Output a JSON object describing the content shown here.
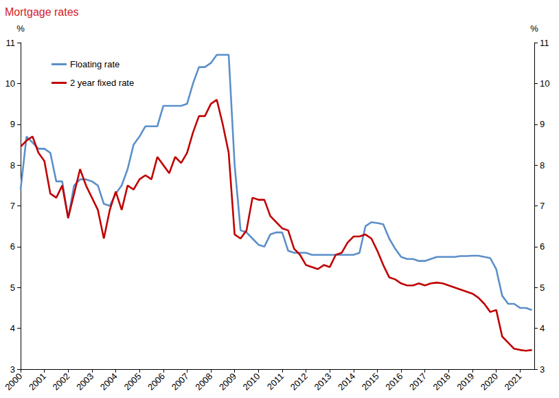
{
  "chart_data": {
    "type": "line",
    "title": "Mortgage rates",
    "y_label": "%",
    "y2_label": "%",
    "x": [
      2000,
      2000.25,
      2000.5,
      2000.75,
      2001,
      2001.25,
      2001.5,
      2001.75,
      2002,
      2002.25,
      2002.5,
      2002.75,
      2003,
      2003.25,
      2003.5,
      2003.75,
      2004,
      2004.25,
      2004.5,
      2004.75,
      2005,
      2005.25,
      2005.5,
      2005.75,
      2006,
      2006.25,
      2006.5,
      2006.75,
      2007,
      2007.25,
      2007.5,
      2007.75,
      2008,
      2008.25,
      2008.5,
      2008.75,
      2009,
      2009.25,
      2009.5,
      2009.75,
      2010,
      2010.25,
      2010.5,
      2010.75,
      2011,
      2011.25,
      2011.5,
      2011.75,
      2012,
      2012.25,
      2012.5,
      2012.75,
      2013,
      2013.25,
      2013.5,
      2013.75,
      2014,
      2014.25,
      2014.5,
      2014.75,
      2015,
      2015.25,
      2015.5,
      2015.75,
      2016,
      2016.25,
      2016.5,
      2016.75,
      2017,
      2017.25,
      2017.5,
      2017.75,
      2018,
      2018.25,
      2018.5,
      2018.75,
      2019,
      2019.25,
      2019.5,
      2019.75,
      2020,
      2020.25,
      2020.5,
      2020.75,
      2021,
      2021.25,
      2021.5
    ],
    "series": [
      {
        "name": "Floating rate",
        "color": "#5b8fc9",
        "values": [
          7.4,
          8.7,
          8.55,
          8.4,
          8.4,
          8.3,
          7.6,
          7.6,
          6.7,
          7.5,
          7.65,
          7.65,
          7.6,
          7.5,
          7.05,
          7.0,
          7.3,
          7.5,
          7.9,
          8.5,
          8.7,
          8.95,
          8.95,
          8.95,
          9.45,
          9.45,
          9.45,
          9.45,
          9.5,
          10.0,
          10.4,
          10.4,
          10.5,
          10.7,
          10.7,
          10.7,
          8.0,
          6.4,
          6.35,
          6.2,
          6.05,
          6.0,
          6.3,
          6.35,
          6.35,
          5.9,
          5.85,
          5.85,
          5.85,
          5.8,
          5.8,
          5.8,
          5.8,
          5.8,
          5.8,
          5.8,
          5.8,
          5.85,
          6.5,
          6.6,
          6.58,
          6.55,
          6.2,
          5.95,
          5.75,
          5.7,
          5.7,
          5.65,
          5.65,
          5.7,
          5.75,
          5.75,
          5.75,
          5.75,
          5.77,
          5.77,
          5.78,
          5.78,
          5.75,
          5.72,
          5.45,
          4.8,
          4.6,
          4.6,
          4.5,
          4.5,
          4.45
        ]
      },
      {
        "name": "2 year fixed rate",
        "color": "#c00000",
        "values": [
          8.45,
          8.6,
          8.7,
          8.3,
          8.1,
          7.3,
          7.2,
          7.5,
          6.7,
          7.3,
          7.9,
          7.5,
          7.2,
          6.9,
          6.2,
          6.9,
          7.35,
          6.9,
          7.5,
          7.4,
          7.65,
          7.75,
          7.65,
          8.2,
          8.0,
          7.8,
          8.2,
          8.05,
          8.3,
          8.8,
          9.2,
          9.2,
          9.5,
          9.6,
          9.0,
          8.3,
          6.3,
          6.2,
          6.4,
          7.2,
          7.15,
          7.15,
          6.75,
          6.6,
          6.45,
          6.4,
          5.95,
          5.8,
          5.55,
          5.5,
          5.45,
          5.55,
          5.5,
          5.8,
          5.85,
          6.1,
          6.25,
          6.25,
          6.3,
          6.2,
          5.9,
          5.55,
          5.25,
          5.2,
          5.1,
          5.05,
          5.05,
          5.1,
          5.05,
          5.1,
          5.12,
          5.1,
          5.05,
          5.0,
          4.95,
          4.9,
          4.85,
          4.75,
          4.6,
          4.4,
          4.45,
          3.8,
          3.65,
          3.5,
          3.47,
          3.45,
          3.47
        ]
      }
    ],
    "xlim": [
      2000,
      2021.6
    ],
    "xticks": [
      2000,
      2001,
      2002,
      2003,
      2004,
      2005,
      2006,
      2007,
      2008,
      2009,
      2010,
      2011,
      2012,
      2013,
      2014,
      2015,
      2016,
      2017,
      2018,
      2019,
      2020,
      2021
    ],
    "ylim": [
      3,
      11
    ],
    "yticks": [
      3,
      4,
      5,
      6,
      7,
      8,
      9,
      10,
      11
    ],
    "y2lim": [
      3,
      11
    ],
    "y2ticks": [
      3,
      4,
      5,
      6,
      7,
      8,
      9,
      10,
      11
    ],
    "grid": false,
    "legend": "upper left"
  }
}
